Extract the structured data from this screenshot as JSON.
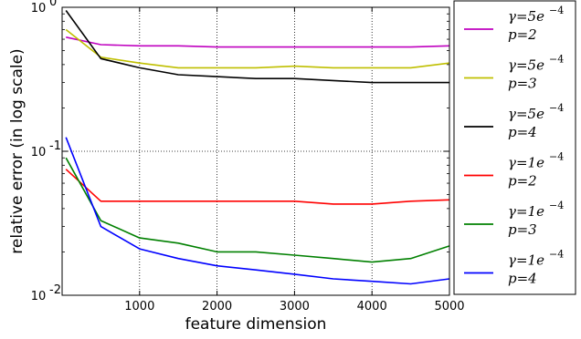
{
  "chart_data": {
    "type": "line",
    "title": "",
    "xlabel": "feature dimension",
    "ylabel": "relative error (in log scale)",
    "x_scale": "linear",
    "y_scale": "log",
    "xlim": [
      0,
      5000
    ],
    "ylim": [
      0.01,
      1
    ],
    "x_ticks": [
      1000,
      2000,
      3000,
      4000,
      5000
    ],
    "x_tick_labels": [
      "1000",
      "2000",
      "3000",
      "4000",
      "5000"
    ],
    "y_ticks": [
      0.01,
      0.1,
      1
    ],
    "y_tick_labels": [
      {
        "base": "10",
        "exp": "-2"
      },
      {
        "base": "10",
        "exp": "-1"
      },
      {
        "base": "10",
        "exp": "0"
      }
    ],
    "grid": true,
    "legend_position": "outside-right",
    "x": [
      50,
      500,
      1000,
      1500,
      2000,
      2500,
      3000,
      3500,
      4000,
      4500,
      5000
    ],
    "series": [
      {
        "name_line1": "γ=5e",
        "name_exp": "−4",
        "name_line2": "p=2",
        "color": "#bf00bf",
        "values": [
          0.62,
          0.55,
          0.54,
          0.54,
          0.53,
          0.53,
          0.53,
          0.53,
          0.53,
          0.53,
          0.54
        ]
      },
      {
        "name_line1": "γ=5e",
        "name_exp": "−4",
        "name_line2": "p=3",
        "color": "#bfbf00",
        "values": [
          0.7,
          0.45,
          0.41,
          0.38,
          0.38,
          0.38,
          0.39,
          0.38,
          0.38,
          0.38,
          0.41
        ]
      },
      {
        "name_line1": "γ=5e",
        "name_exp": "−4",
        "name_line2": "p=4",
        "color": "#000000",
        "values": [
          0.95,
          0.44,
          0.38,
          0.34,
          0.33,
          0.32,
          0.32,
          0.31,
          0.3,
          0.3,
          0.3
        ]
      },
      {
        "name_line1": "γ=1e",
        "name_exp": "−4",
        "name_line2": "p=2",
        "color": "#ff0000",
        "values": [
          0.075,
          0.045,
          0.045,
          0.045,
          0.045,
          0.045,
          0.045,
          0.043,
          0.043,
          0.045,
          0.046
        ]
      },
      {
        "name_line1": "γ=1e",
        "name_exp": "−4",
        "name_line2": "p=3",
        "color": "#008000",
        "values": [
          0.09,
          0.033,
          0.025,
          0.023,
          0.02,
          0.02,
          0.019,
          0.018,
          0.017,
          0.018,
          0.022
        ]
      },
      {
        "name_line1": "γ=1e",
        "name_exp": "−4",
        "name_line2": "p=4",
        "color": "#0000ff",
        "values": [
          0.125,
          0.03,
          0.021,
          0.018,
          0.016,
          0.015,
          0.014,
          0.013,
          0.0125,
          0.012,
          0.013
        ]
      }
    ]
  }
}
